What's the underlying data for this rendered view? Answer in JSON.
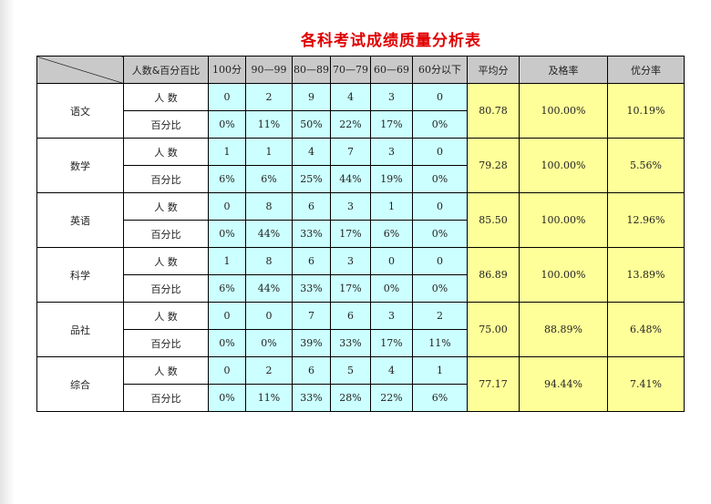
{
  "title": "各科考试成绩质量分析表",
  "headers": {
    "row_label": "人数&百分百比",
    "distribution": [
      "100分",
      "90—99",
      "80—89",
      "70—79",
      "60—69",
      "60分以下"
    ],
    "summary": [
      "平均分",
      "及格率",
      "优分率"
    ]
  },
  "row_labels": {
    "count": "人 数",
    "percent": "百分比"
  },
  "subjects": [
    {
      "name": "语文",
      "counts": [
        "0",
        "2",
        "9",
        "4",
        "3",
        "0"
      ],
      "percents": [
        "0%",
        "11%",
        "50%",
        "22%",
        "17%",
        "0%"
      ],
      "average": "80.78",
      "pass_rate": "100.00%",
      "excellent_rate": "10.19%"
    },
    {
      "name": "数学",
      "counts": [
        "1",
        "1",
        "4",
        "7",
        "3",
        "0"
      ],
      "percents": [
        "6%",
        "6%",
        "25%",
        "44%",
        "19%",
        "0%"
      ],
      "average": "79.28",
      "pass_rate": "100.00%",
      "excellent_rate": "5.56%"
    },
    {
      "name": "英语",
      "counts": [
        "0",
        "8",
        "6",
        "3",
        "1",
        "0"
      ],
      "percents": [
        "0%",
        "44%",
        "33%",
        "17%",
        "6%",
        "0%"
      ],
      "average": "85.50",
      "pass_rate": "100.00%",
      "excellent_rate": "12.96%"
    },
    {
      "name": "科学",
      "counts": [
        "1",
        "8",
        "6",
        "3",
        "0",
        "0"
      ],
      "percents": [
        "6%",
        "44%",
        "33%",
        "17%",
        "0%",
        "0%"
      ],
      "average": "86.89",
      "pass_rate": "100.00%",
      "excellent_rate": "13.89%"
    },
    {
      "name": "品社",
      "counts": [
        "0",
        "0",
        "7",
        "6",
        "3",
        "2"
      ],
      "percents": [
        "0%",
        "0%",
        "39%",
        "33%",
        "17%",
        "11%"
      ],
      "average": "75.00",
      "pass_rate": "88.89%",
      "excellent_rate": "6.48%"
    },
    {
      "name": "综合",
      "counts": [
        "0",
        "2",
        "6",
        "5",
        "4",
        "1"
      ],
      "percents": [
        "0%",
        "11%",
        "33%",
        "28%",
        "22%",
        "6%"
      ],
      "average": "77.17",
      "pass_rate": "94.44%",
      "excellent_rate": "7.41%"
    }
  ],
  "colors": {
    "title": "#e00000",
    "header_bg": "#c9c9c9",
    "distribution_bg": "#ccffff",
    "summary_bg": "#ffff99",
    "count_label": "#1a3ec8",
    "percent_label": "#e07a00",
    "distribution_header_text": "#2fbf2f"
  }
}
